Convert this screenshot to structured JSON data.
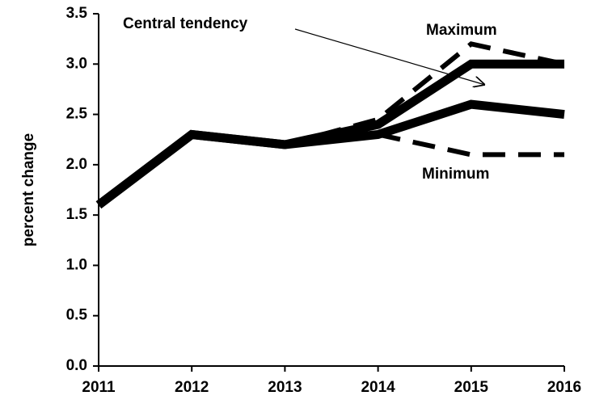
{
  "chart_data": {
    "type": "line",
    "y_label": "percent change",
    "categories": [
      "2011",
      "2012",
      "2013",
      "2014",
      "2015",
      "2016"
    ],
    "series": [
      {
        "name": "Central tendency",
        "color": "#000000",
        "style": "solid",
        "values": [
          1.6,
          2.3,
          2.2,
          2.4,
          3.0,
          3.0
        ]
      },
      {
        "color": "#000000",
        "style": "solid",
        "values": [
          1.6,
          2.3,
          2.2,
          2.3,
          2.6,
          2.5
        ]
      },
      {
        "name": "Maximum",
        "color": "#000000",
        "style": "dashed",
        "values": [
          null,
          null,
          2.2,
          2.45,
          3.2,
          3.0
        ]
      },
      {
        "name": "Minimum",
        "color": "#000000",
        "style": "dashed",
        "values": [
          null,
          null,
          null,
          2.3,
          2.1,
          2.1
        ]
      }
    ],
    "ylim": [
      0,
      3.5
    ],
    "yticks": [
      {
        "value": 0,
        "label": "0.0"
      },
      0.5,
      {
        "value": 1,
        "label": "1.0"
      },
      1.5,
      {
        "value": 2,
        "label": "2.0"
      },
      2.5,
      {
        "value": 3,
        "label": "3.0"
      },
      3.5
    ],
    "grid": false
  }
}
